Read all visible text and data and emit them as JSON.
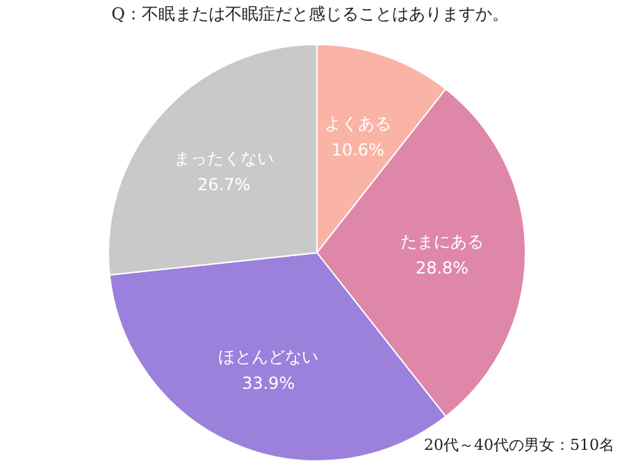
{
  "chart_data": {
    "type": "pie",
    "title": "Q：不眠または不眠症だと感じることはありますか。",
    "categories": [
      "よくある",
      "たまにある",
      "ほとんどない",
      "まったくない"
    ],
    "values": [
      10.6,
      28.8,
      33.9,
      26.7
    ],
    "colors": [
      "#f9b4a6",
      "#de87a9",
      "#9b80dc",
      "#c9c9c9"
    ],
    "value_labels": [
      "10.6%",
      "28.8%",
      "33.9%",
      "26.7%"
    ],
    "legend": false,
    "annotations": [
      "20代～40代の男女：510名"
    ]
  }
}
